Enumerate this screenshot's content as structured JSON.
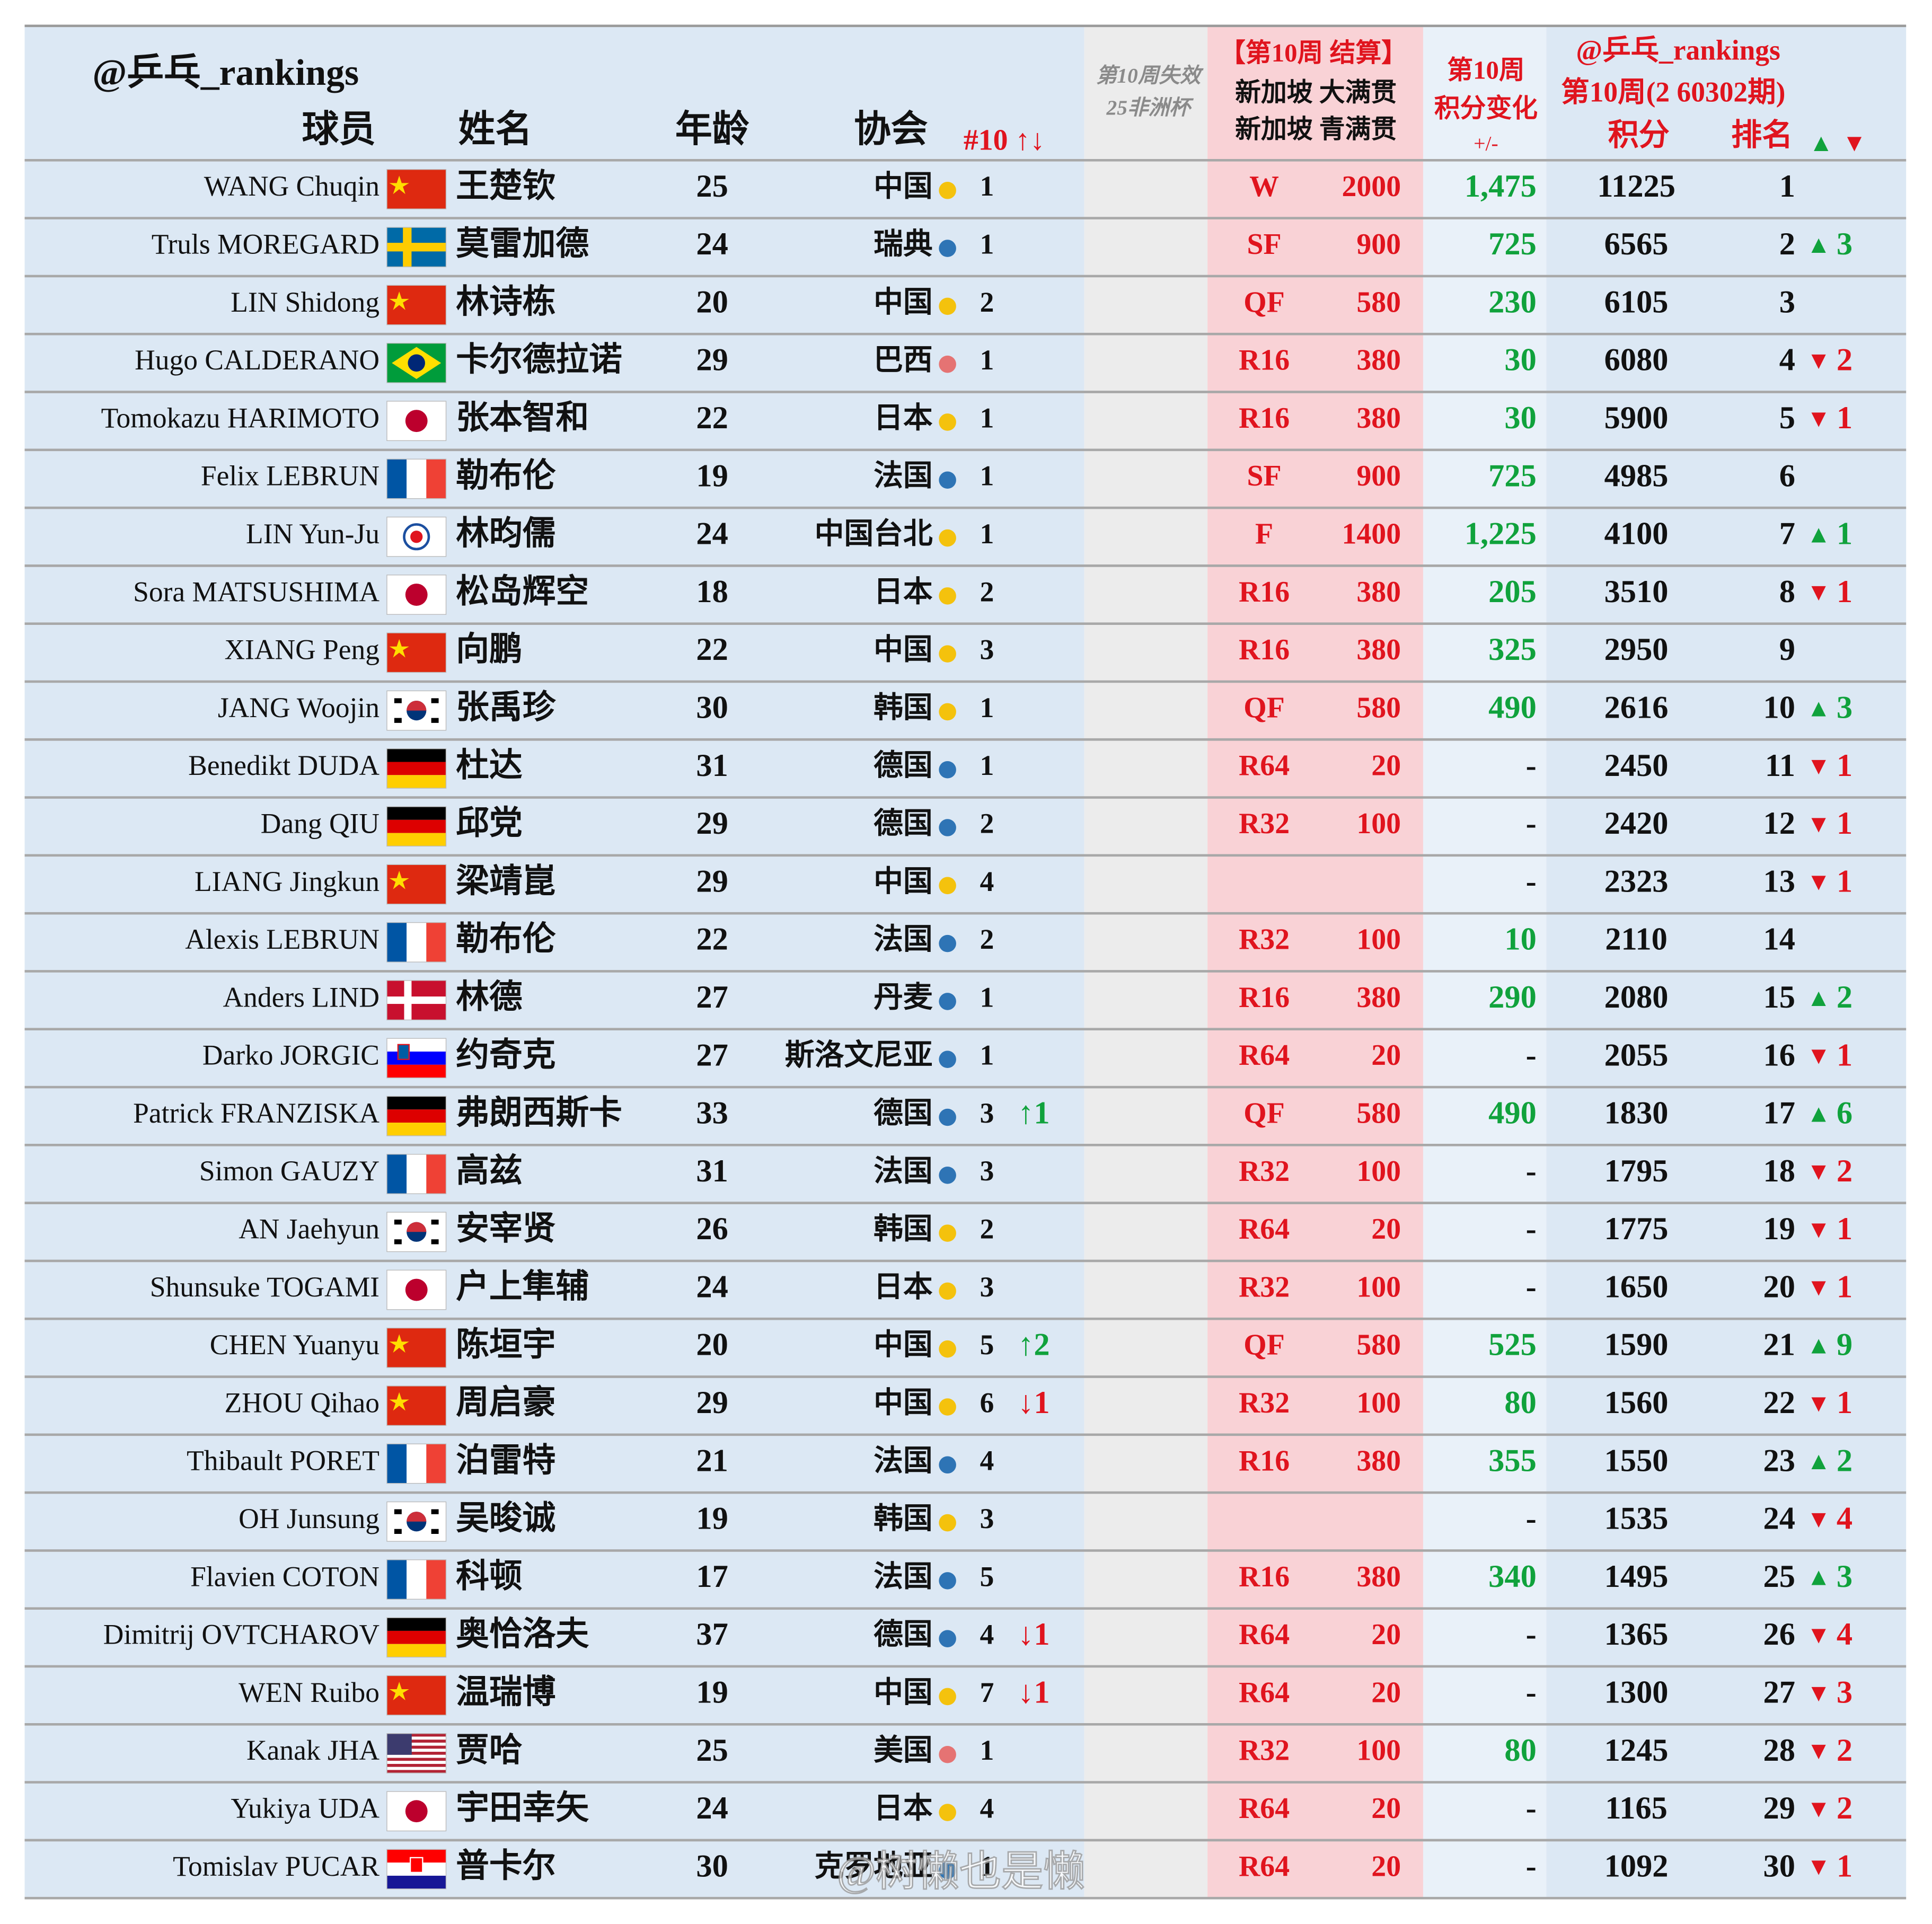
{
  "header": {
    "handle": "@乒乓_rankings",
    "col_player": "球员",
    "col_name": "姓名",
    "col_age": "年龄",
    "col_assoc": "协会",
    "col_rank10": "#10 ↑↓",
    "expired_title": "第10周失效",
    "expired_event": "25非洲杯",
    "event_title": "【第10周 结算】",
    "event_1": "新加坡 大满贯",
    "event_2": "新加坡 青满贯",
    "change_title": "第10周",
    "change_sub": "积分变化",
    "change_unit": "+/-",
    "ranking_handle": "@乒乓_rankings",
    "ranking_period": "第10周(2 60302期)",
    "col_points": "积分",
    "col_rank": "排名",
    "up": "▲",
    "down": "▼"
  },
  "rows": [
    {
      "en": "WANG Chuqin",
      "cn": "王楚钦",
      "age": "25",
      "assoc": "中国",
      "assoc_rank": "1",
      "round": "W",
      "pts": "2000",
      "change": "1,475",
      "points": "11225",
      "rank": "1"
    },
    {
      "en": "Truls MOREGARD",
      "cn": "莫雷加德",
      "age": "24",
      "assoc": "瑞典",
      "assoc_rank": "1",
      "round": "SF",
      "pts": "900",
      "change": "725",
      "points": "6565",
      "rank": "2",
      "arrow": "▲",
      "delta": "3"
    },
    {
      "en": "LIN Shidong",
      "cn": "林诗栋",
      "age": "20",
      "assoc": "中国",
      "assoc_rank": "2",
      "round": "QF",
      "pts": "580",
      "change": "230",
      "points": "6105",
      "rank": "3"
    },
    {
      "en": "Hugo CALDERANO",
      "cn": "卡尔德拉诺",
      "age": "29",
      "assoc": "巴西",
      "assoc_rank": "1",
      "round": "R16",
      "pts": "380",
      "change": "30",
      "points": "6080",
      "rank": "4",
      "arrow": "▼",
      "delta": "2"
    },
    {
      "en": "Tomokazu HARIMOTO",
      "cn": "张本智和",
      "age": "22",
      "assoc": "日本",
      "assoc_rank": "1",
      "round": "R16",
      "pts": "380",
      "change": "30",
      "points": "5900",
      "rank": "5",
      "arrow": "▼",
      "delta": "1"
    },
    {
      "en": "Felix LEBRUN",
      "cn": "勒布伦",
      "age": "19",
      "assoc": "法国",
      "assoc_rank": "1",
      "round": "SF",
      "pts": "900",
      "change": "725",
      "points": "4985",
      "rank": "6"
    },
    {
      "en": "LIN Yun-Ju",
      "cn": "林昀儒",
      "age": "24",
      "assoc": "中国台北",
      "assoc_rank": "1",
      "round": "F",
      "pts": "1400",
      "change": "1,225",
      "points": "4100",
      "rank": "7",
      "arrow": "▲",
      "delta": "1"
    },
    {
      "en": "Sora MATSUSHIMA",
      "cn": "松岛辉空",
      "age": "18",
      "assoc": "日本",
      "assoc_rank": "2",
      "round": "R16",
      "pts": "380",
      "change": "205",
      "points": "3510",
      "rank": "8",
      "arrow": "▼",
      "delta": "1"
    },
    {
      "en": "XIANG Peng",
      "cn": "向鹏",
      "age": "22",
      "assoc": "中国",
      "assoc_rank": "3",
      "round": "R16",
      "pts": "380",
      "change": "325",
      "points": "2950",
      "rank": "9"
    },
    {
      "en": "JANG Woojin",
      "cn": "张禹珍",
      "age": "30",
      "assoc": "韩国",
      "assoc_rank": "1",
      "round": "QF",
      "pts": "580",
      "change": "490",
      "points": "2616",
      "rank": "10",
      "arrow": "▲",
      "delta": "3"
    },
    {
      "en": "Benedikt DUDA",
      "cn": "杜达",
      "age": "31",
      "assoc": "德国",
      "assoc_rank": "1",
      "round": "R64",
      "pts": "20",
      "change": "-",
      "points": "2450",
      "rank": "11",
      "arrow": "▼",
      "delta": "1"
    },
    {
      "en": "Dang QIU",
      "cn": "邱党",
      "age": "29",
      "assoc": "德国",
      "assoc_rank": "2",
      "round": "R32",
      "pts": "100",
      "change": "-",
      "points": "2420",
      "rank": "12",
      "arrow": "▼",
      "delta": "1"
    },
    {
      "en": "LIANG Jingkun",
      "cn": "梁靖崑",
      "age": "29",
      "assoc": "中国",
      "assoc_rank": "4",
      "change": "-",
      "points": "2323",
      "rank": "13",
      "arrow": "▼",
      "delta": "1"
    },
    {
      "en": "Alexis LEBRUN",
      "cn": "勒布伦",
      "age": "22",
      "assoc": "法国",
      "assoc_rank": "2",
      "round": "R32",
      "pts": "100",
      "change": "10",
      "points": "2110",
      "rank": "14"
    },
    {
      "en": "Anders LIND",
      "cn": "林德",
      "age": "27",
      "assoc": "丹麦",
      "assoc_rank": "1",
      "round": "R16",
      "pts": "380",
      "change": "290",
      "points": "2080",
      "rank": "15",
      "arrow": "▲",
      "delta": "2"
    },
    {
      "en": "Darko JORGIC",
      "cn": "约奇克",
      "age": "27",
      "assoc": "斯洛文尼亚",
      "assoc_rank": "1",
      "round": "R64",
      "pts": "20",
      "change": "-",
      "points": "2055",
      "rank": "16",
      "arrow": "▼",
      "delta": "1"
    },
    {
      "en": "Patrick FRANZISKA",
      "cn": "弗朗西斯卡",
      "age": "33",
      "assoc": "德国",
      "assoc_rank": "3",
      "move": "↑1",
      "round": "QF",
      "pts": "580",
      "change": "490",
      "points": "1830",
      "rank": "17",
      "arrow": "▲",
      "delta": "6"
    },
    {
      "en": "Simon GAUZY",
      "cn": "高兹",
      "age": "31",
      "assoc": "法国",
      "assoc_rank": "3",
      "round": "R32",
      "pts": "100",
      "change": "-",
      "points": "1795",
      "rank": "18",
      "arrow": "▼",
      "delta": "2"
    },
    {
      "en": "AN Jaehyun",
      "cn": "安宰贤",
      "age": "26",
      "assoc": "韩国",
      "assoc_rank": "2",
      "round": "R64",
      "pts": "20",
      "change": "-",
      "points": "1775",
      "rank": "19",
      "arrow": "▼",
      "delta": "1"
    },
    {
      "en": "Shunsuke TOGAMI",
      "cn": "户上隼辅",
      "age": "24",
      "assoc": "日本",
      "assoc_rank": "3",
      "round": "R32",
      "pts": "100",
      "change": "-",
      "points": "1650",
      "rank": "20",
      "arrow": "▼",
      "delta": "1"
    },
    {
      "en": "CHEN Yuanyu",
      "cn": "陈垣宇",
      "age": "20",
      "assoc": "中国",
      "assoc_rank": "5",
      "move": "↑2",
      "round": "QF",
      "pts": "580",
      "change": "525",
      "points": "1590",
      "rank": "21",
      "arrow": "▲",
      "delta": "9"
    },
    {
      "en": "ZHOU Qihao",
      "cn": "周启豪",
      "age": "29",
      "assoc": "中国",
      "assoc_rank": "6",
      "move": "↓1",
      "round": "R32",
      "pts": "100",
      "change": "80",
      "points": "1560",
      "rank": "22",
      "arrow": "▼",
      "delta": "1"
    },
    {
      "en": "Thibault PORET",
      "cn": "泊雷特",
      "age": "21",
      "assoc": "法国",
      "assoc_rank": "4",
      "round": "R16",
      "pts": "380",
      "change": "355",
      "points": "1550",
      "rank": "23",
      "arrow": "▲",
      "delta": "2"
    },
    {
      "en": "OH Junsung",
      "cn": "吴晙诚",
      "age": "19",
      "assoc": "韩国",
      "assoc_rank": "3",
      "change": "-",
      "points": "1535",
      "rank": "24",
      "arrow": "▼",
      "delta": "4"
    },
    {
      "en": "Flavien COTON",
      "cn": "科顿",
      "age": "17",
      "assoc": "法国",
      "assoc_rank": "5",
      "round": "R16",
      "pts": "380",
      "change": "340",
      "points": "1495",
      "rank": "25",
      "arrow": "▲",
      "delta": "3"
    },
    {
      "en": "Dimitrij OVTCHAROV",
      "cn": "奥恰洛夫",
      "age": "37",
      "assoc": "德国",
      "assoc_rank": "4",
      "move": "↓1",
      "round": "R64",
      "pts": "20",
      "change": "-",
      "points": "1365",
      "rank": "26",
      "arrow": "▼",
      "delta": "4"
    },
    {
      "en": "WEN Ruibo",
      "cn": "温瑞博",
      "age": "19",
      "assoc": "中国",
      "assoc_rank": "7",
      "move": "↓1",
      "round": "R64",
      "pts": "20",
      "change": "-",
      "points": "1300",
      "rank": "27",
      "arrow": "▼",
      "delta": "3"
    },
    {
      "en": "Kanak JHA",
      "cn": "贾哈",
      "age": "25",
      "assoc": "美国",
      "assoc_rank": "1",
      "round": "R32",
      "pts": "100",
      "change": "80",
      "points": "1245",
      "rank": "28",
      "arrow": "▼",
      "delta": "2"
    },
    {
      "en": "Yukiya UDA",
      "cn": "宇田幸矢",
      "age": "24",
      "assoc": "日本",
      "assoc_rank": "4",
      "round": "R64",
      "pts": "20",
      "change": "-",
      "points": "1165",
      "rank": "29",
      "arrow": "▼",
      "delta": "2"
    },
    {
      "en": "Tomislav PUCAR",
      "cn": "普卡尔",
      "age": "30",
      "assoc": "克罗地亚",
      "assoc_rank": "1",
      "round": "R64",
      "pts": "20",
      "change": "-",
      "points": "1092",
      "rank": "30",
      "arrow": "▼",
      "delta": "1"
    }
  ],
  "watermark": "@树懒也是懒"
}
